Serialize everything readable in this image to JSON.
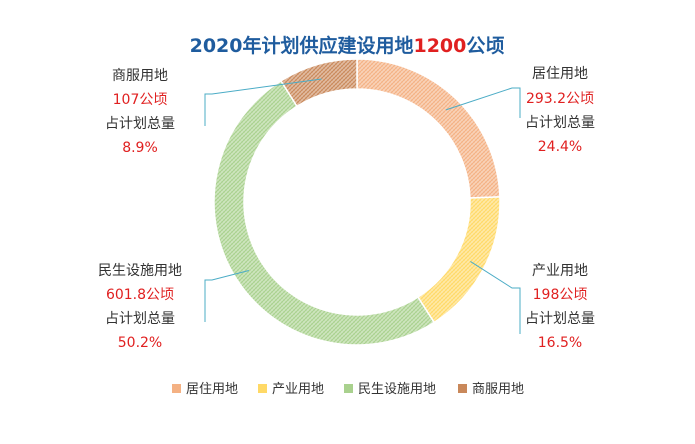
{
  "chart_data": {
    "type": "pie",
    "title": {
      "prefix": "2020年计划供应建设用地",
      "highlight": "1200",
      "suffix": "公顷"
    },
    "share_label": "占计划总量",
    "categories": [
      "居住用地",
      "产业用地",
      "民生设施用地",
      "商服用地"
    ],
    "values": [
      293.2,
      198,
      601.8,
      107
    ],
    "value_labels": [
      "293.2公顷",
      "198公顷",
      "601.8公顷",
      "107公顷"
    ],
    "percent_labels": [
      "24.4%",
      "16.5%",
      "50.2%",
      "8.9%"
    ],
    "colors": [
      "#f4b183",
      "#ffd966",
      "#a9d18e",
      "#c9885a"
    ],
    "legend_position": "bottom",
    "donut": true
  }
}
